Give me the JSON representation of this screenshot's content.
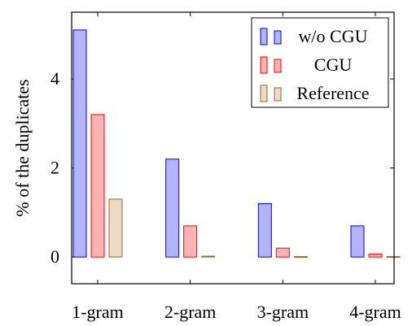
{
  "chart_data": {
    "type": "bar",
    "title": "",
    "xlabel": "",
    "ylabel": "% of the duplicates",
    "categories": [
      "1-gram",
      "2-gram",
      "3-gram",
      "4-gram"
    ],
    "ylim": [
      -0.6,
      5.5
    ],
    "yticks": [
      0,
      2,
      4
    ],
    "ytick_labels": [
      "0",
      "2",
      "4"
    ],
    "grid": false,
    "legend_position": "top-right",
    "series": [
      {
        "name": "w/o CGU",
        "values": [
          5.1,
          2.2,
          1.2,
          0.7
        ],
        "fill": "#b3b3ff",
        "stroke": "#0000ff"
      },
      {
        "name": "CGU",
        "values": [
          3.2,
          0.7,
          0.2,
          0.07
        ],
        "fill": "#ffb3b3",
        "stroke": "#ff0000"
      },
      {
        "name": "Reference",
        "values": [
          1.3,
          0.02,
          0.01,
          0.01
        ],
        "fill": "#ecd9c6",
        "stroke": "#996633"
      }
    ]
  }
}
